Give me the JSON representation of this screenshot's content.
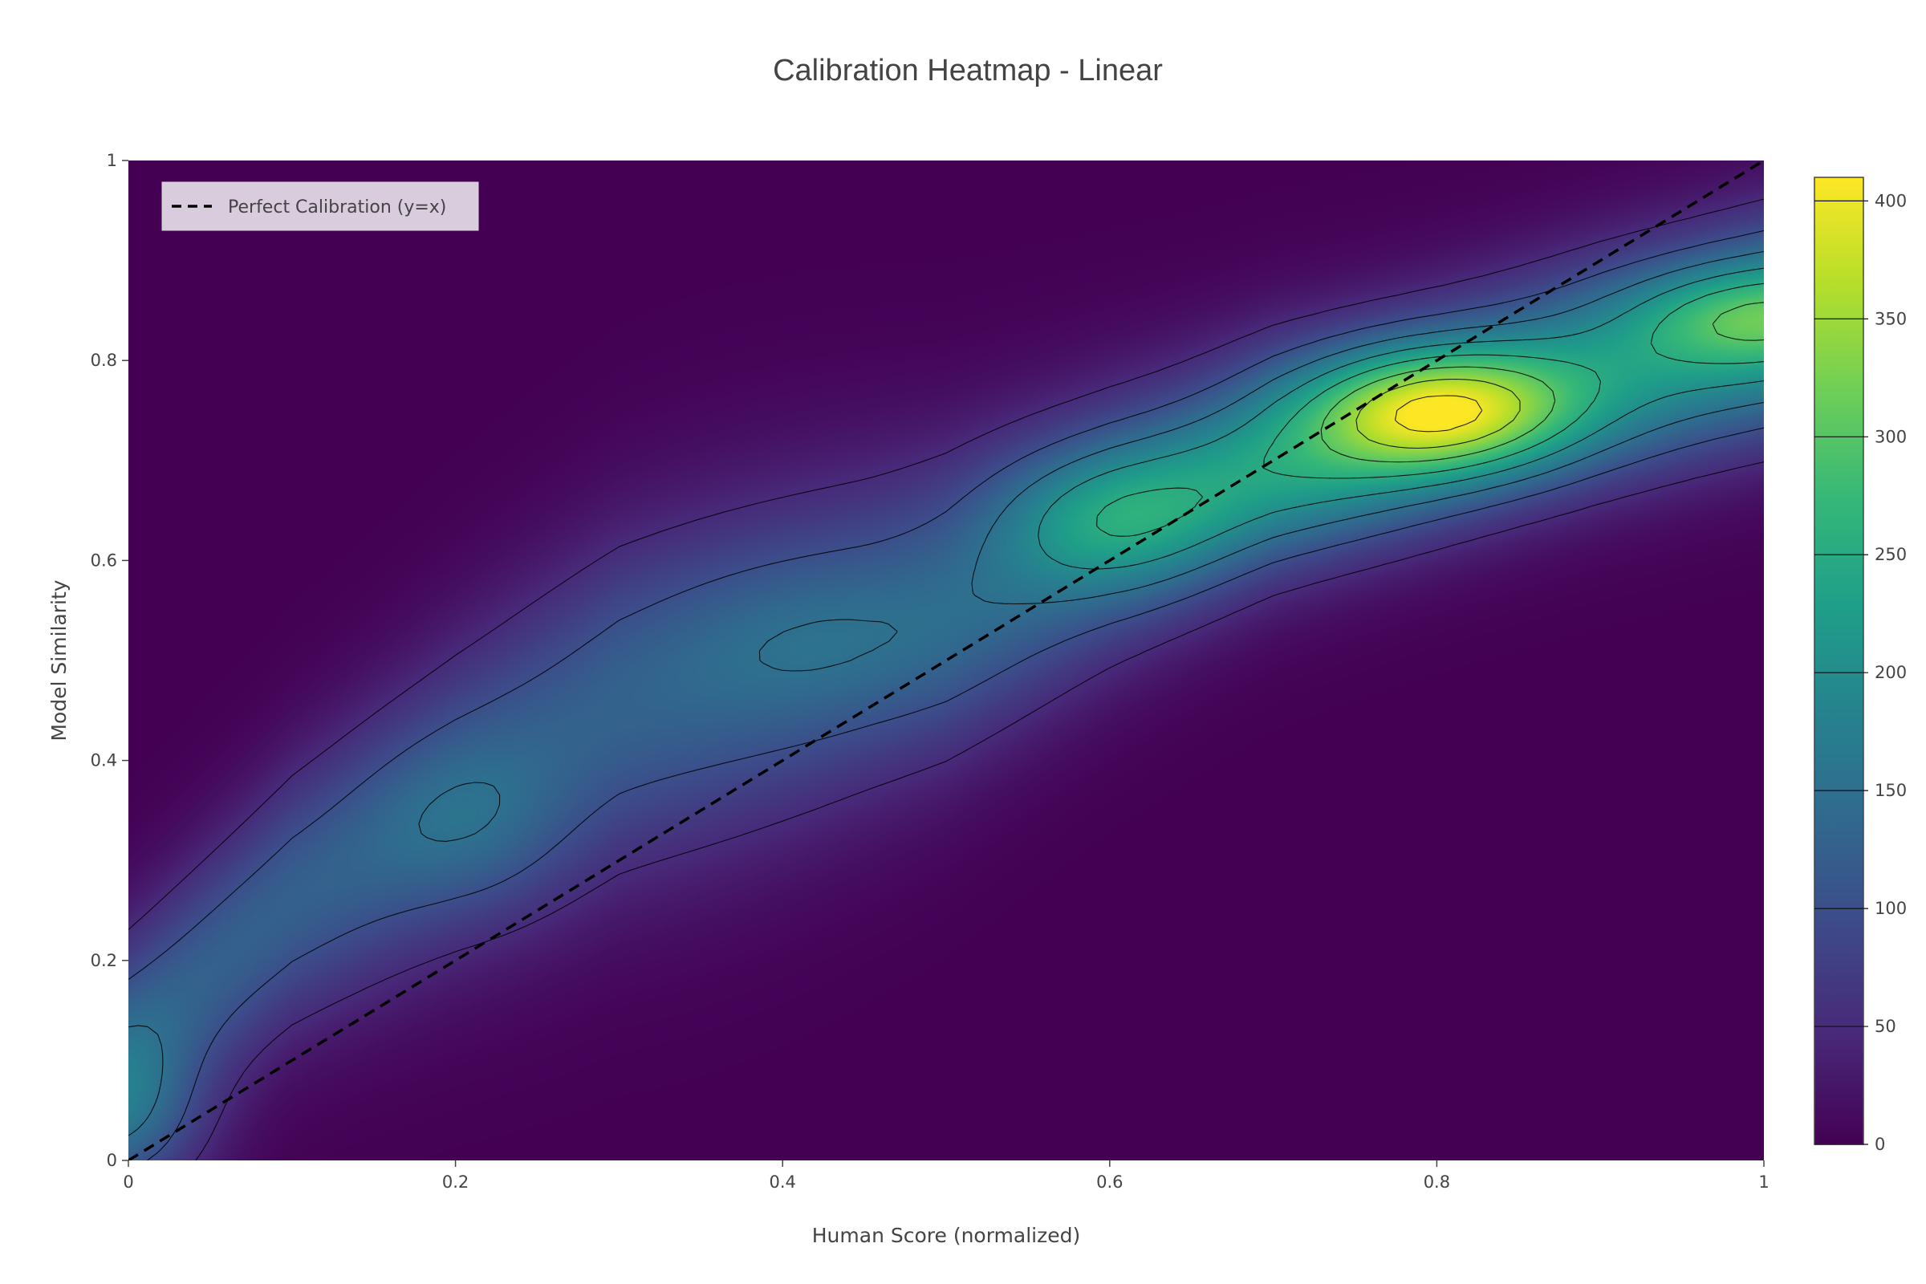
{
  "chart_data": {
    "type": "heatmap",
    "title": "Calibration Heatmap - Linear",
    "xlabel": "Human Score (normalized)",
    "ylabel": "Model Similarity",
    "xlim": [
      0,
      1
    ],
    "ylim": [
      0,
      1
    ],
    "x_ticks": [
      0,
      0.2,
      0.4,
      0.6,
      0.8,
      1
    ],
    "y_ticks": [
      0,
      0.2,
      0.4,
      0.6,
      0.8,
      1
    ],
    "x_tick_labels": [
      "0",
      "0.2",
      "0.4",
      "0.6",
      "0.8",
      "1"
    ],
    "y_tick_labels": [
      "0",
      "0.2",
      "0.4",
      "0.6",
      "0.8",
      "1"
    ],
    "colorscale": "Viridis",
    "colorscale_stops": [
      "#440154",
      "#482878",
      "#3e4989",
      "#31688e",
      "#26828e",
      "#1f9e89",
      "#35b779",
      "#6ece58",
      "#b5de2b",
      "#fde725"
    ],
    "zlim": [
      0,
      410
    ],
    "colorbar_ticks": [
      0,
      50,
      100,
      150,
      200,
      250,
      300,
      350,
      400
    ],
    "colorbar_tick_labels": [
      "0",
      "50",
      "100",
      "150",
      "200",
      "250",
      "300",
      "350",
      "400"
    ],
    "contour_levels": [
      50,
      100,
      150,
      200,
      250,
      300,
      350,
      400
    ],
    "density_peaks": [
      {
        "x": 0.8,
        "y": 0.75,
        "value": 410
      },
      {
        "x": 0.6,
        "y": 0.64,
        "value": 250
      },
      {
        "x": 1.0,
        "y": 0.84,
        "value": 240
      },
      {
        "x": 0.42,
        "y": 0.52,
        "value": 140
      },
      {
        "x": 0.2,
        "y": 0.33,
        "value": 135
      },
      {
        "x": 0.0,
        "y": 0.05,
        "value": 150
      }
    ],
    "series": [
      {
        "name": "Perfect Calibration (y=x)",
        "type": "line",
        "dash": "dash",
        "color": "#000000",
        "x": [
          0,
          1
        ],
        "y": [
          0,
          1
        ]
      }
    ],
    "legend_position": "top-left",
    "grid": false
  }
}
